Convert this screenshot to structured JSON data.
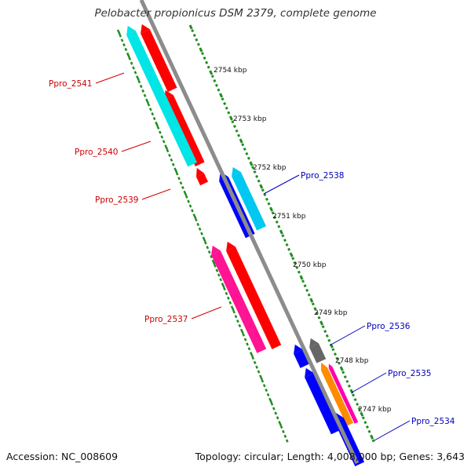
{
  "title": "Pelobacter propionicus DSM 2379, complete genome",
  "accession": "Accession: NC_008609",
  "topology": "Topology: circular; Length: 4,008,000 bp; Genes: 3,643",
  "colors": {
    "backbone": "#8c8c8c",
    "ticks": "#1e8c1e",
    "forward_label": "#cc0000",
    "reverse_label": "#0000bb"
  },
  "kbp_labels": [
    "2754 kbp",
    "2753 kbp",
    "2752 kbp",
    "2751 kbp",
    "2750 kbp",
    "2749 kbp",
    "2748 kbp",
    "2747 kbp"
  ],
  "gene_labels": [
    {
      "name": "Ppro_2541",
      "strand": "forward"
    },
    {
      "name": "Ppro_2540",
      "strand": "forward"
    },
    {
      "name": "Ppro_2539",
      "strand": "forward"
    },
    {
      "name": "Ppro_2537",
      "strand": "forward"
    },
    {
      "name": "Ppro_2538",
      "strand": "reverse"
    },
    {
      "name": "Ppro_2536",
      "strand": "reverse"
    },
    {
      "name": "Ppro_2535",
      "strand": "reverse"
    },
    {
      "name": "Ppro_2534",
      "strand": "reverse"
    }
  ],
  "features": [
    {
      "name": "Ppro_2541",
      "color": "#ff0000",
      "icon": "forward-arrow"
    },
    {
      "name": "Ppro_2540",
      "color": "#ff0000",
      "icon": "forward-arrow"
    },
    {
      "name": "Ppro_2539",
      "color": "#ff0000",
      "icon": "forward-arrow"
    },
    {
      "name": "Ppro_2537",
      "color": "#ff0000",
      "icon": "forward-arrow"
    },
    {
      "name": "Ppro_2538",
      "color": "#0000ff",
      "icon": "reverse-arrow"
    },
    {
      "name": "Ppro_2536",
      "color": "#0000ff",
      "icon": "reverse-arrow"
    },
    {
      "name": "Ppro_2535",
      "color": "#0000ff",
      "icon": "reverse-arrow"
    },
    {
      "name": "Ppro_2534",
      "color": "#0000ff",
      "icon": "reverse-arrow"
    }
  ]
}
